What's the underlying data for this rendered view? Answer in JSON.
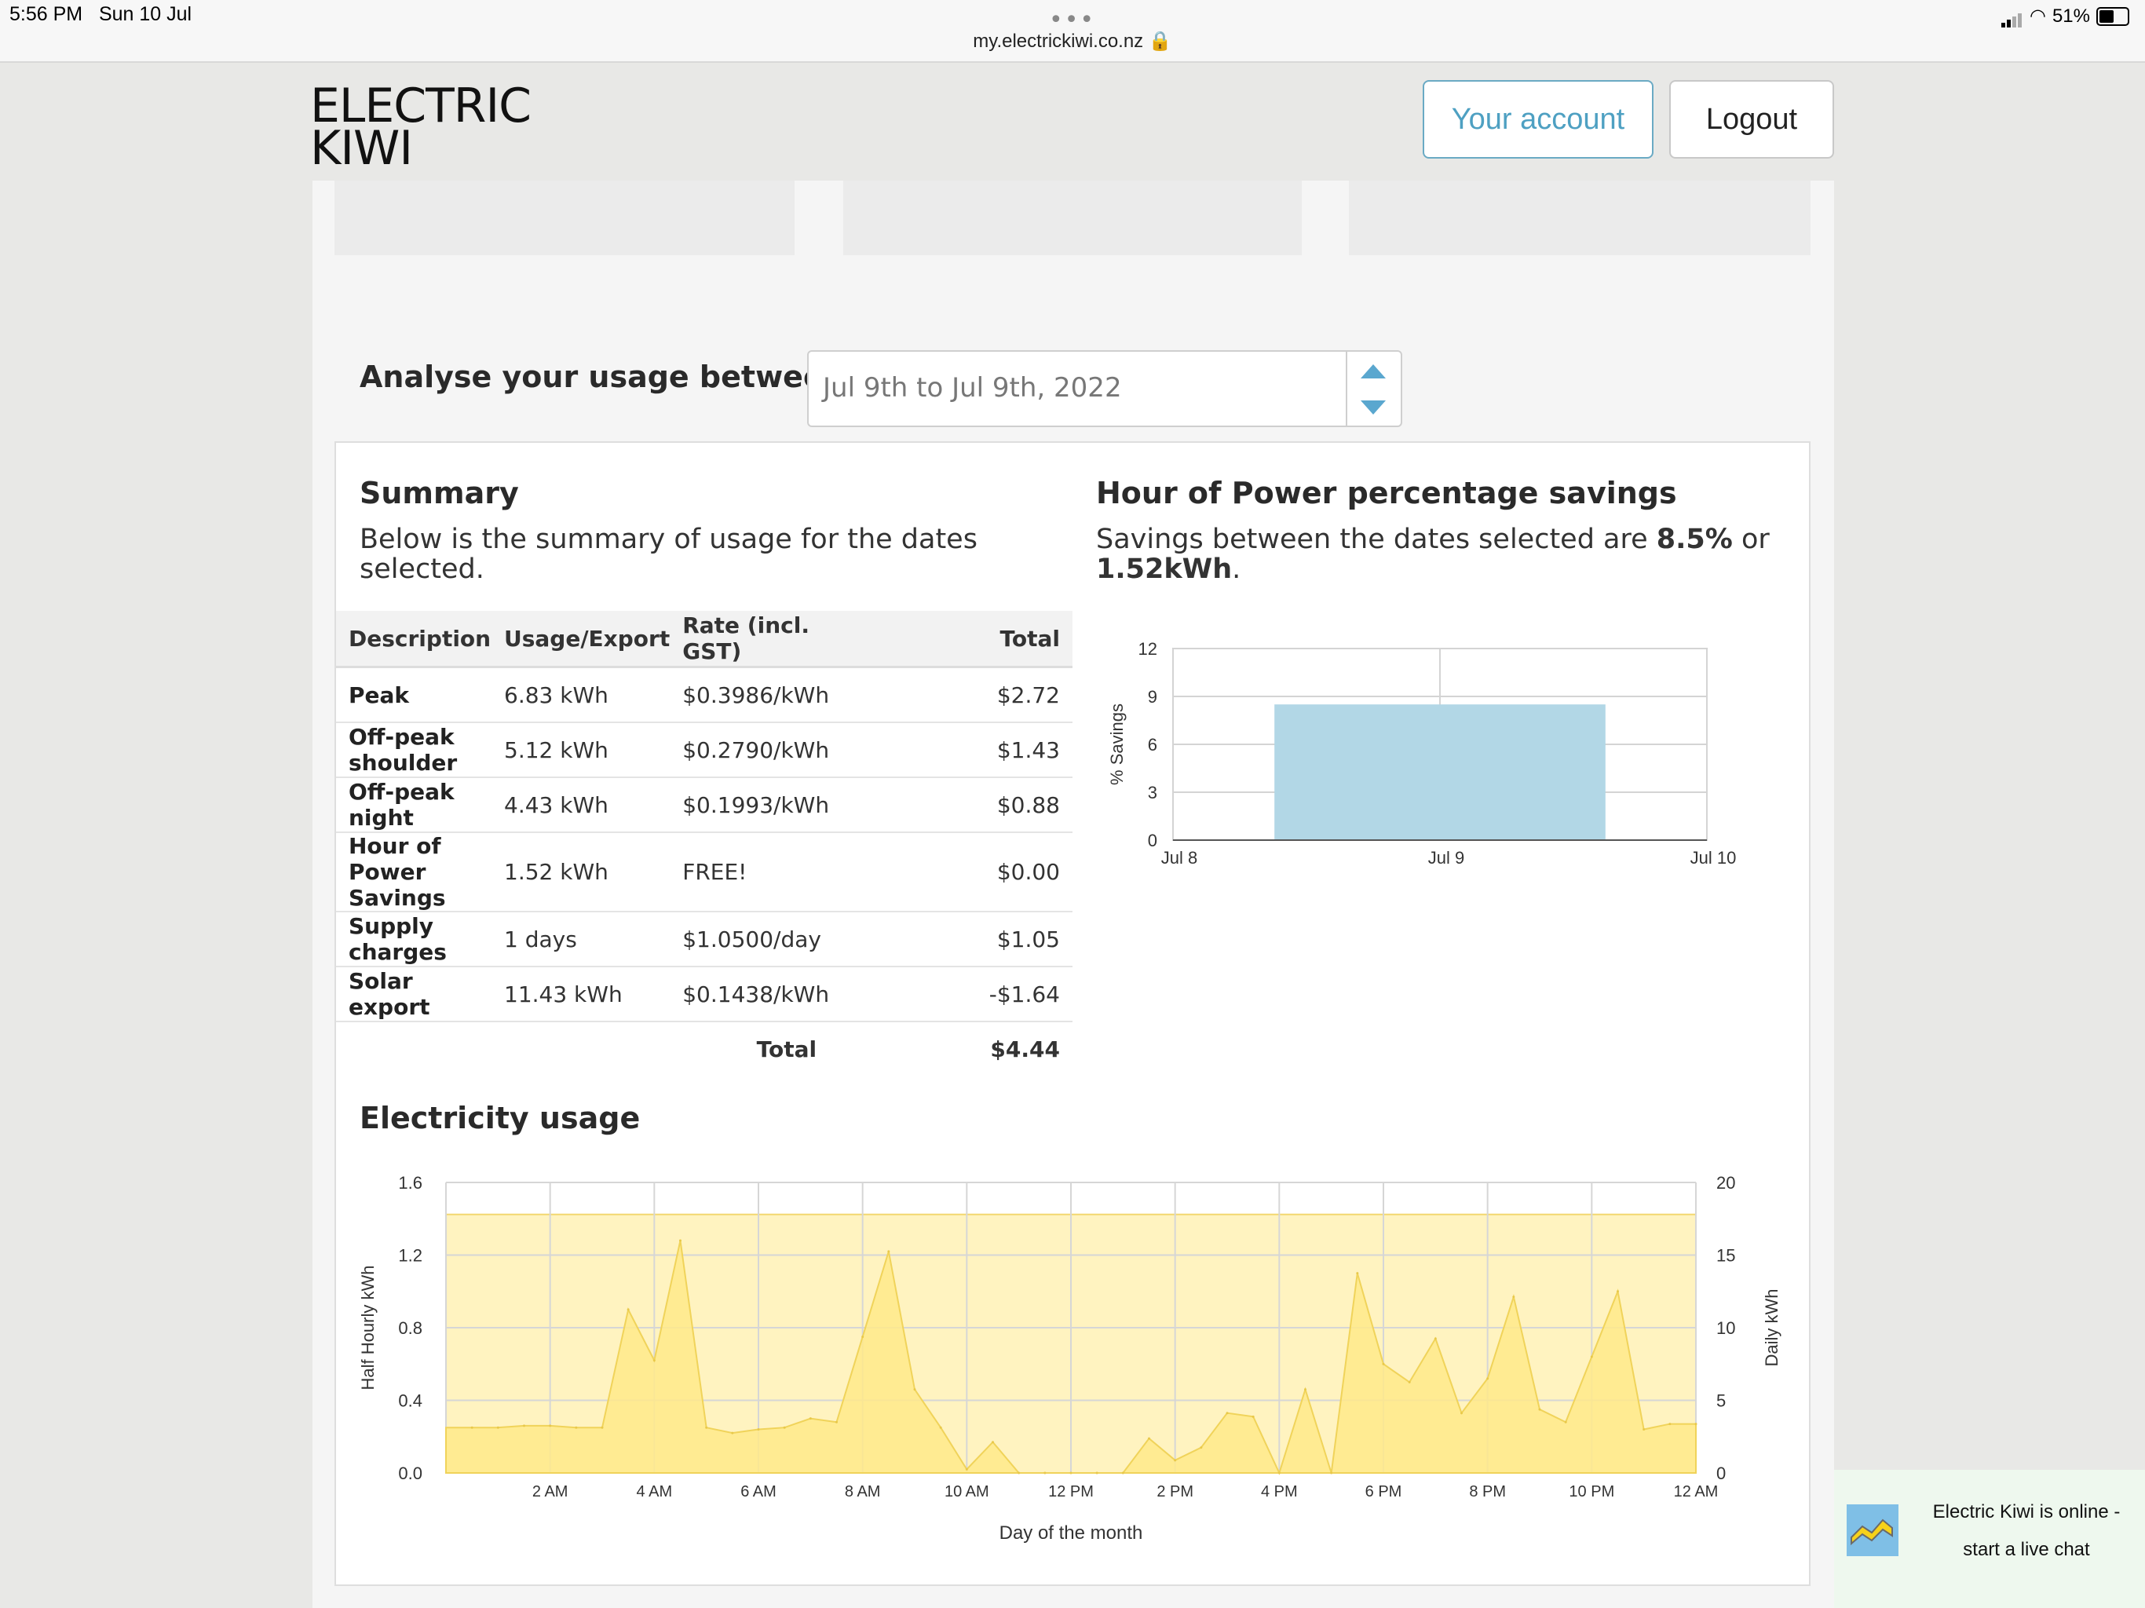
{
  "status_bar": {
    "time": "5:56 PM",
    "date": "Sun 10 Jul",
    "url": "my.electrickiwi.co.nz",
    "battery": "51%"
  },
  "header": {
    "logo_line1": "ELECTRIC",
    "logo_line2": "KIWI",
    "account_label": "Your account",
    "logout_label": "Logout"
  },
  "analyse": {
    "label": "Analyse your usage between",
    "date_range": "Jul 9th to Jul 9th, 2022"
  },
  "summary": {
    "title": "Summary",
    "description": "Below is the summary of usage for the dates selected.",
    "columns": [
      "Description",
      "Usage/Export",
      "Rate (incl. GST)",
      "Total"
    ],
    "rows": [
      {
        "description": "Peak",
        "usage": "6.83 kWh",
        "rate": "$0.3986/kWh",
        "total": "$2.72"
      },
      {
        "description": "Off-peak shoulder",
        "usage": "5.12 kWh",
        "rate": "$0.2790/kWh",
        "total": "$1.43"
      },
      {
        "description": "Off-peak night",
        "usage": "4.43 kWh",
        "rate": "$0.1993/kWh",
        "total": "$0.88"
      },
      {
        "description": "Hour of Power Savings",
        "usage": "1.52 kWh",
        "rate": "FREE!",
        "total": "$0.00"
      },
      {
        "description": "Supply charges",
        "usage": "1 days",
        "rate": "$1.0500/day",
        "total": "$1.05"
      },
      {
        "description": "Solar export",
        "usage": "11.43 kWh",
        "rate": "$0.1438/kWh",
        "total": "-$1.64"
      }
    ],
    "total_label": "Total",
    "total_value": "$4.44"
  },
  "hop": {
    "title": "Hour of Power percentage savings",
    "desc_prefix": "Savings between the dates selected are ",
    "percent": "8.5%",
    "desc_mid": " or ",
    "kwh": "1.52kWh",
    "desc_suffix": "."
  },
  "electricity": {
    "title": "Electricity usage"
  },
  "chat": {
    "line1": "Electric Kiwi is online -",
    "line2": "start a live chat"
  },
  "chart_data": [
    {
      "type": "bar",
      "categories": [
        "Jul 9"
      ],
      "x_ticks": [
        "Jul 8",
        "Jul 9",
        "Jul 10"
      ],
      "values": [
        8.5
      ],
      "ylabel": "% Savings",
      "ylim": [
        0,
        12
      ],
      "y_ticks": [
        0,
        3,
        6,
        9,
        12
      ],
      "bar_color": "#b2d7e6",
      "grid": true
    },
    {
      "type": "area",
      "x_ticks": [
        "2 AM",
        "4 AM",
        "6 AM",
        "8 AM",
        "10 AM",
        "12 PM",
        "2 PM",
        "4 PM",
        "6 PM",
        "8 PM",
        "10 PM",
        "12 AM"
      ],
      "x_hours": [
        0.5,
        1,
        1.5,
        2,
        2.5,
        3,
        3.5,
        4,
        4.5,
        5,
        5.5,
        6,
        6.5,
        7,
        7.5,
        8,
        8.5,
        9,
        9.5,
        10,
        10.5,
        11,
        11.5,
        12,
        12.5,
        13,
        13.5,
        14,
        14.5,
        15,
        15.5,
        16,
        16.5,
        17,
        17.5,
        18,
        18.5,
        19,
        19.5,
        20,
        20.5,
        21,
        21.5,
        22,
        22.5,
        23,
        23.5,
        24
      ],
      "half_hourly_kwh": [
        0.25,
        0.25,
        0.26,
        0.26,
        0.25,
        0.25,
        0.9,
        0.62,
        1.28,
        0.25,
        0.22,
        0.24,
        0.25,
        0.3,
        0.28,
        0.75,
        1.22,
        0.46,
        0.25,
        0.02,
        0.17,
        0.0,
        0.0,
        0.0,
        0.0,
        0.0,
        0.19,
        0.07,
        0.14,
        0.33,
        0.31,
        0.0,
        0.46,
        0.0,
        1.1,
        0.6,
        0.5,
        0.74,
        0.33,
        0.52,
        0.97,
        0.35,
        0.28,
        0.64,
        1.0,
        0.24,
        0.27,
        0.27
      ],
      "daily_kwh": 17.8,
      "xlabel": "Day of the month",
      "ylabel_left": "Half Hourly kWh",
      "ylabel_right": "Daily kWh",
      "ylim_left": [
        0,
        1.6
      ],
      "y_ticks_left": [
        "0.0",
        "0.4",
        "0.8",
        "1.2",
        "1.6"
      ],
      "ylim_right": [
        0,
        20
      ],
      "y_ticks_right": [
        0,
        5,
        10,
        15,
        20
      ],
      "daily_color": "#fff3c0",
      "half_hourly_color": "#ffe98a",
      "grid": true
    }
  ]
}
